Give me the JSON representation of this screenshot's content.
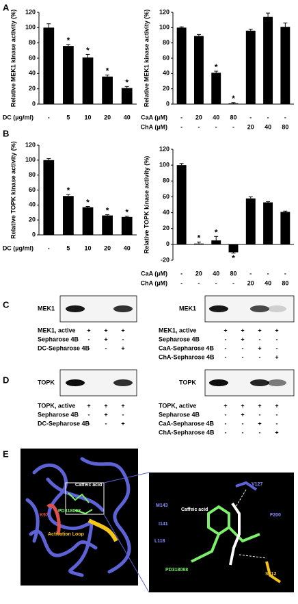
{
  "panel_labels": [
    "A",
    "B",
    "C",
    "D",
    "E"
  ],
  "chart_data": [
    {
      "type": "bar",
      "y_label": "Relative MEK1 kinase activity (%)",
      "x_label": "DC (µg/ml)",
      "categories": [
        "-",
        "5",
        "10",
        "20",
        "40"
      ],
      "values": [
        100,
        76,
        61,
        36,
        21
      ],
      "errors": [
        5,
        2,
        4,
        2,
        2
      ],
      "stars": [
        null,
        "*",
        "*",
        "*",
        "*"
      ],
      "color": "#000000",
      "ylim": [
        0,
        120
      ],
      "yticks": [
        0,
        20,
        40,
        60,
        80,
        100,
        120
      ]
    },
    {
      "type": "bar",
      "y_label": "Relative MEK1 kinase activity (%)",
      "x_label_rows": [
        {
          "name": "CaA (µM)",
          "labels": [
            "-",
            "20",
            "40",
            "80",
            "-",
            "-",
            "-"
          ]
        },
        {
          "name": "ChA (µM)",
          "labels": [
            "-",
            "-",
            "-",
            "-",
            "20",
            "40",
            "80"
          ]
        }
      ],
      "values": [
        100,
        89,
        41,
        1,
        96,
        114,
        101
      ],
      "errors": [
        1,
        2,
        2,
        1,
        2,
        5,
        5
      ],
      "stars": [
        null,
        null,
        "*",
        "*",
        null,
        null,
        null
      ],
      "color": "#000000",
      "ylim": [
        0,
        120
      ],
      "yticks": [
        0,
        20,
        40,
        60,
        80,
        100,
        120
      ]
    },
    {
      "type": "bar",
      "y_label": "Relative TOPK kinase activity (%)",
      "x_label": "DC (µg/ml)",
      "categories": [
        "-",
        "5",
        "10",
        "20",
        "40"
      ],
      "values": [
        100,
        52,
        37,
        26,
        24
      ],
      "errors": [
        2,
        2,
        1,
        1,
        1
      ],
      "stars": [
        null,
        "*",
        "*",
        "*",
        "*"
      ],
      "color": "#000000",
      "ylim": [
        0,
        120
      ],
      "yticks": [
        0,
        20,
        40,
        60,
        80,
        100,
        120
      ]
    },
    {
      "type": "bar",
      "y_label": "Relative TOPK kinase activity (%)",
      "x_label_rows": [
        {
          "name": "CaA (µM)",
          "labels": [
            "-",
            "20",
            "40",
            "80",
            "-",
            "-",
            "-"
          ]
        },
        {
          "name": "ChA (µM)",
          "labels": [
            "-",
            "-",
            "-",
            "-",
            "20",
            "40",
            "80"
          ]
        }
      ],
      "values": [
        100,
        1,
        5,
        -10,
        58,
        53,
        41
      ],
      "errors": [
        2,
        2,
        5,
        1,
        2,
        1,
        1
      ],
      "stars": [
        null,
        "*",
        "*",
        "*",
        null,
        null,
        null
      ],
      "color": "#000000",
      "ylim": [
        -20,
        120
      ],
      "yticks": [
        -20,
        0,
        20,
        40,
        60,
        80,
        100,
        120
      ]
    }
  ],
  "blots": [
    {
      "protein": "MEK1",
      "rows": [
        {
          "name": "MEK1, active",
          "signs": [
            "+",
            "+",
            "+"
          ]
        },
        {
          "name": "Sepharose 4B",
          "signs": [
            "-",
            "+",
            "-"
          ]
        },
        {
          "name": "DC-Sepharose 4B",
          "signs": [
            "-",
            "-",
            "+"
          ]
        }
      ]
    },
    {
      "protein": "MEK1",
      "rows": [
        {
          "name": "MEK1, active",
          "signs": [
            "+",
            "+",
            "+",
            "+"
          ]
        },
        {
          "name": "Sepharose 4B",
          "signs": [
            "-",
            "+",
            "-",
            "-"
          ]
        },
        {
          "name": "CaA-Sepharose 4B",
          "signs": [
            "-",
            "-",
            "+",
            "-"
          ]
        },
        {
          "name": "ChA-Sepharose 4B",
          "signs": [
            "-",
            "-",
            "-",
            "+"
          ]
        }
      ]
    },
    {
      "protein": "TOPK",
      "rows": [
        {
          "name": "TOPK, active",
          "signs": [
            "+",
            "+",
            "+"
          ]
        },
        {
          "name": "Sepharose 4B",
          "signs": [
            "-",
            "+",
            "-"
          ]
        },
        {
          "name": "DC-Sepharose 4B",
          "signs": [
            "-",
            "-",
            "+"
          ]
        }
      ]
    },
    {
      "protein": "TOPK",
      "rows": [
        {
          "name": "TOPK, active",
          "signs": [
            "+",
            "+",
            "+",
            "+"
          ]
        },
        {
          "name": "Sepharose 4B",
          "signs": [
            "-",
            "+",
            "-",
            "-"
          ]
        },
        {
          "name": "CaA-Sepharose 4B",
          "signs": [
            "-",
            "-",
            "+",
            "-"
          ]
        },
        {
          "name": "ChA-Sepharose 4B",
          "signs": [
            "-",
            "-",
            "-",
            "+"
          ]
        }
      ]
    }
  ],
  "structure": {
    "overview_labels": [
      "Caffeic acid",
      "K97",
      "PD318088",
      "Activation Loop"
    ],
    "detail_labels": [
      "V127",
      "M143",
      "Caffeic acid",
      "I141",
      "F200",
      "L118",
      "PD318088",
      "S212"
    ]
  }
}
